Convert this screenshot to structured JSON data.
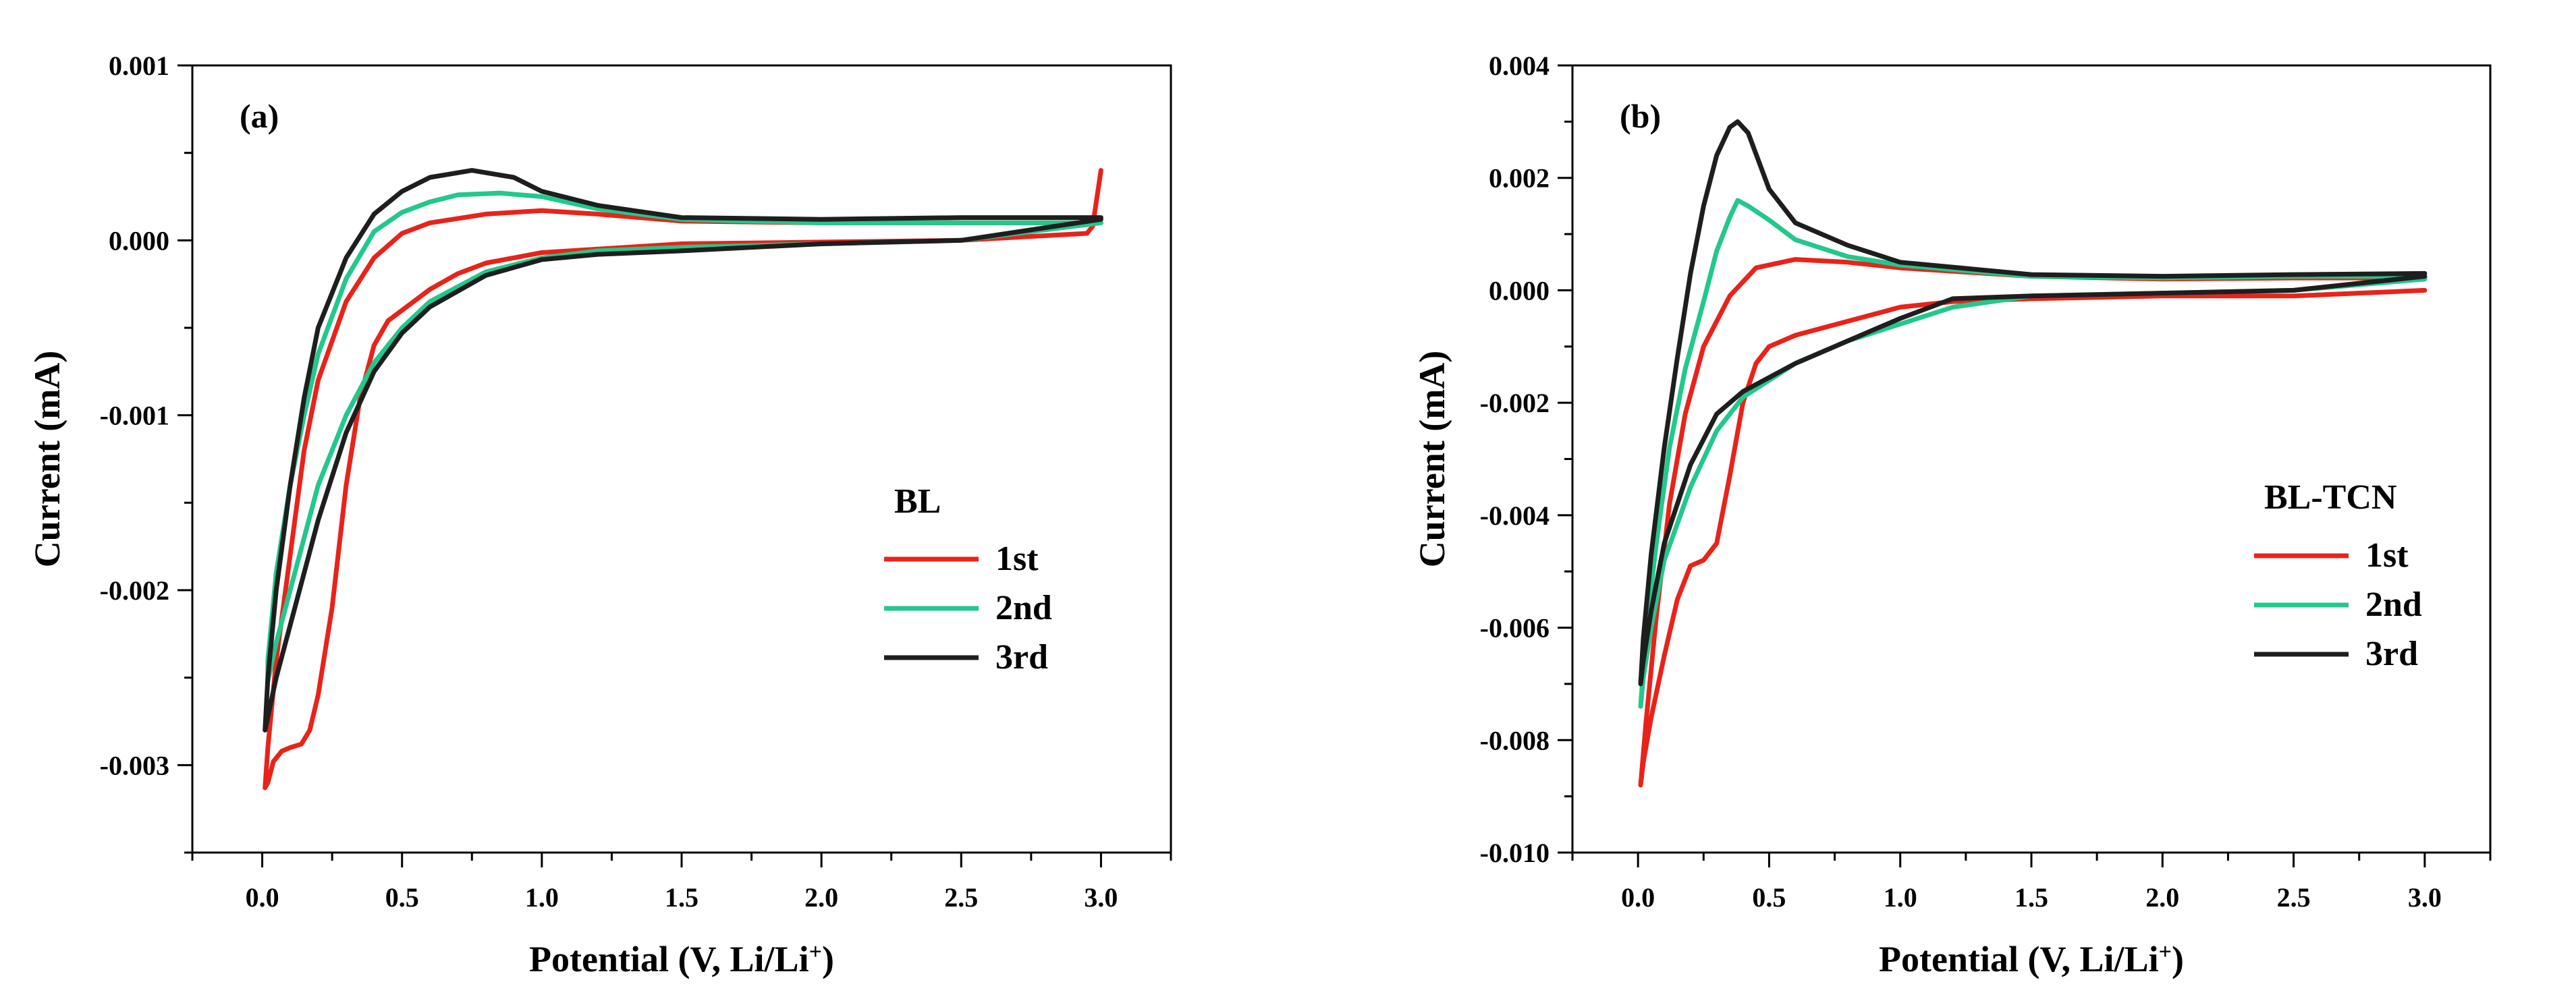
{
  "chart_data": [
    {
      "type": "line",
      "panel_label": "(a)",
      "title": "",
      "xlabel": "Potential (V, Li/Li",
      "xlabel_sup": "+",
      "xlabel_end": ")",
      "ylabel": "Current (mA)",
      "xlim": [
        -0.25,
        3.25
      ],
      "ylim": [
        -0.0035,
        0.001
      ],
      "xticks": [
        0.0,
        0.5,
        1.0,
        1.5,
        2.0,
        2.5,
        3.0
      ],
      "xtick_labels": [
        "0.0",
        "0.5",
        "1.0",
        "1.5",
        "2.0",
        "2.5",
        "3.0"
      ],
      "yticks": [
        -0.003,
        -0.002,
        -0.001,
        0.0,
        0.001
      ],
      "ytick_labels": [
        "-0.003",
        "-0.002",
        "-0.001",
        "0.000",
        "0.001"
      ],
      "grid": false,
      "legend": {
        "title": "BL",
        "position": "center-right",
        "entries": [
          "1st",
          "2nd",
          "3rd"
        ]
      },
      "series": [
        {
          "name": "1st",
          "color": "#e8231a",
          "points": [
            [
              3.0,
              0.0004
            ],
            [
              2.97,
              8e-05
            ],
            [
              2.95,
              4e-05
            ],
            [
              2.5,
              0.0
            ],
            [
              2.0,
              -1e-05
            ],
            [
              1.5,
              -2e-05
            ],
            [
              1.0,
              -7e-05
            ],
            [
              0.8,
              -0.00013
            ],
            [
              0.7,
              -0.00019
            ],
            [
              0.6,
              -0.00028
            ],
            [
              0.5,
              -0.0004
            ],
            [
              0.45,
              -0.00046
            ],
            [
              0.4,
              -0.0006
            ],
            [
              0.35,
              -0.0009
            ],
            [
              0.3,
              -0.0014
            ],
            [
              0.25,
              -0.0021
            ],
            [
              0.2,
              -0.0026
            ],
            [
              0.17,
              -0.0028
            ],
            [
              0.14,
              -0.00288
            ],
            [
              0.1,
              -0.0029
            ],
            [
              0.07,
              -0.00292
            ],
            [
              0.04,
              -0.00298
            ],
            [
              0.02,
              -0.0031
            ],
            [
              0.01,
              -0.00313
            ],
            [
              0.02,
              -0.0029
            ],
            [
              0.05,
              -0.0024
            ],
            [
              0.1,
              -0.0018
            ],
            [
              0.15,
              -0.0012
            ],
            [
              0.2,
              -0.0008
            ],
            [
              0.3,
              -0.00035
            ],
            [
              0.4,
              -0.0001
            ],
            [
              0.5,
              4e-05
            ],
            [
              0.6,
              0.0001
            ],
            [
              0.8,
              0.00015
            ],
            [
              1.0,
              0.00017
            ],
            [
              1.2,
              0.00015
            ],
            [
              1.5,
              0.00011
            ],
            [
              2.0,
              0.0001
            ],
            [
              2.5,
              0.0001
            ],
            [
              2.9,
              0.0001
            ],
            [
              3.0,
              0.0001
            ]
          ]
        },
        {
          "name": "2nd",
          "color": "#22c88c",
          "points": [
            [
              3.0,
              0.0001
            ],
            [
              2.5,
              0.0
            ],
            [
              2.0,
              -2e-05
            ],
            [
              1.5,
              -4e-05
            ],
            [
              1.2,
              -6e-05
            ],
            [
              1.0,
              -0.0001
            ],
            [
              0.8,
              -0.00018
            ],
            [
              0.6,
              -0.00035
            ],
            [
              0.5,
              -0.0005
            ],
            [
              0.4,
              -0.0007
            ],
            [
              0.3,
              -0.001
            ],
            [
              0.2,
              -0.0014
            ],
            [
              0.15,
              -0.0017
            ],
            [
              0.1,
              -0.002
            ],
            [
              0.05,
              -0.0023
            ],
            [
              0.02,
              -0.00252
            ],
            [
              0.02,
              -0.0024
            ],
            [
              0.05,
              -0.0019
            ],
            [
              0.1,
              -0.0014
            ],
            [
              0.15,
              -0.001
            ],
            [
              0.2,
              -0.00065
            ],
            [
              0.3,
              -0.00022
            ],
            [
              0.4,
              5e-05
            ],
            [
              0.5,
              0.00016
            ],
            [
              0.6,
              0.00022
            ],
            [
              0.7,
              0.00026
            ],
            [
              0.85,
              0.00027
            ],
            [
              1.0,
              0.00025
            ],
            [
              1.2,
              0.00018
            ],
            [
              1.5,
              0.00012
            ],
            [
              2.0,
              0.0001
            ],
            [
              2.5,
              0.0001
            ],
            [
              3.0,
              0.0001
            ]
          ]
        },
        {
          "name": "3rd",
          "color": "#1e1e1e",
          "points": [
            [
              3.0,
              0.00012
            ],
            [
              2.5,
              0.0
            ],
            [
              2.0,
              -2e-05
            ],
            [
              1.5,
              -6e-05
            ],
            [
              1.2,
              -8e-05
            ],
            [
              1.0,
              -0.00011
            ],
            [
              0.8,
              -0.0002
            ],
            [
              0.6,
              -0.00038
            ],
            [
              0.5,
              -0.00053
            ],
            [
              0.4,
              -0.00075
            ],
            [
              0.3,
              -0.0011
            ],
            [
              0.2,
              -0.0016
            ],
            [
              0.15,
              -0.0019
            ],
            [
              0.1,
              -0.0022
            ],
            [
              0.05,
              -0.0025
            ],
            [
              0.01,
              -0.0028
            ],
            [
              0.02,
              -0.0025
            ],
            [
              0.05,
              -0.002
            ],
            [
              0.1,
              -0.0014
            ],
            [
              0.15,
              -0.0009
            ],
            [
              0.2,
              -0.0005
            ],
            [
              0.3,
              -0.0001
            ],
            [
              0.4,
              0.00015
            ],
            [
              0.5,
              0.00028
            ],
            [
              0.6,
              0.00036
            ],
            [
              0.75,
              0.0004
            ],
            [
              0.9,
              0.00036
            ],
            [
              1.0,
              0.00028
            ],
            [
              1.2,
              0.0002
            ],
            [
              1.5,
              0.00013
            ],
            [
              2.0,
              0.00012
            ],
            [
              2.5,
              0.00013
            ],
            [
              3.0,
              0.00013
            ]
          ]
        }
      ]
    },
    {
      "type": "line",
      "panel_label": "(b)",
      "title": "",
      "xlabel": "Potential (V, Li/Li",
      "xlabel_sup": "+",
      "xlabel_end": ")",
      "ylabel": "Current (mA)",
      "xlim": [
        -0.25,
        3.25
      ],
      "ylim": [
        -0.01,
        0.004
      ],
      "xticks": [
        0.0,
        0.5,
        1.0,
        1.5,
        2.0,
        2.5,
        3.0
      ],
      "xtick_labels": [
        "0.0",
        "0.5",
        "1.0",
        "1.5",
        "2.0",
        "2.5",
        "3.0"
      ],
      "yticks": [
        -0.01,
        -0.008,
        -0.006,
        -0.004,
        -0.002,
        0.0,
        0.002,
        0.004
      ],
      "ytick_labels": [
        "-0.010",
        "-0.008",
        "-0.006",
        "-0.004",
        "-0.002",
        "0.000",
        "0.002",
        "0.004"
      ],
      "grid": false,
      "legend": {
        "title": "BL-TCN",
        "position": "center-right",
        "entries": [
          "1st",
          "2nd",
          "3rd"
        ]
      },
      "series": [
        {
          "name": "1st",
          "color": "#e8231a",
          "points": [
            [
              3.0,
              0.0
            ],
            [
              2.5,
              -0.0001
            ],
            [
              2.0,
              -0.0001
            ],
            [
              1.5,
              -0.00015
            ],
            [
              1.2,
              -0.0002
            ],
            [
              1.0,
              -0.0003
            ],
            [
              0.8,
              -0.00055
            ],
            [
              0.6,
              -0.0008
            ],
            [
              0.5,
              -0.001
            ],
            [
              0.45,
              -0.0013
            ],
            [
              0.4,
              -0.002
            ],
            [
              0.35,
              -0.0033
            ],
            [
              0.3,
              -0.0045
            ],
            [
              0.25,
              -0.0048
            ],
            [
              0.2,
              -0.0049
            ],
            [
              0.15,
              -0.0055
            ],
            [
              0.1,
              -0.0065
            ],
            [
              0.05,
              -0.0076
            ],
            [
              0.02,
              -0.0084
            ],
            [
              0.01,
              -0.0088
            ],
            [
              0.03,
              -0.0077
            ],
            [
              0.07,
              -0.0058
            ],
            [
              0.12,
              -0.0038
            ],
            [
              0.18,
              -0.0022
            ],
            [
              0.25,
              -0.001
            ],
            [
              0.35,
              -0.0001
            ],
            [
              0.45,
              0.0004
            ],
            [
              0.6,
              0.00055
            ],
            [
              0.8,
              0.0005
            ],
            [
              1.0,
              0.0004
            ],
            [
              1.5,
              0.00025
            ],
            [
              2.0,
              0.0002
            ],
            [
              2.5,
              0.00022
            ],
            [
              3.0,
              0.00022
            ]
          ]
        },
        {
          "name": "2nd",
          "color": "#22c88c",
          "points": [
            [
              3.0,
              0.0002
            ],
            [
              2.5,
              0.0
            ],
            [
              2.0,
              -5e-05
            ],
            [
              1.5,
              -0.0001
            ],
            [
              1.2,
              -0.0003
            ],
            [
              1.0,
              -0.0006
            ],
            [
              0.8,
              -0.0009
            ],
            [
              0.6,
              -0.0013
            ],
            [
              0.4,
              -0.0019
            ],
            [
              0.3,
              -0.0025
            ],
            [
              0.2,
              -0.0035
            ],
            [
              0.1,
              -0.0048
            ],
            [
              0.05,
              -0.006
            ],
            [
              0.02,
              -0.0069
            ],
            [
              0.01,
              -0.0074
            ],
            [
              0.03,
              -0.0061
            ],
            [
              0.07,
              -0.0045
            ],
            [
              0.12,
              -0.0028
            ],
            [
              0.18,
              -0.0014
            ],
            [
              0.25,
              -0.0002
            ],
            [
              0.3,
              0.0007
            ],
            [
              0.35,
              0.0013
            ],
            [
              0.38,
              0.0016
            ],
            [
              0.42,
              0.0015
            ],
            [
              0.5,
              0.00125
            ],
            [
              0.6,
              0.0009
            ],
            [
              0.8,
              0.0006
            ],
            [
              1.0,
              0.00045
            ],
            [
              1.5,
              0.00025
            ],
            [
              2.0,
              0.00022
            ],
            [
              2.5,
              0.00025
            ],
            [
              3.0,
              0.00025
            ]
          ]
        },
        {
          "name": "3rd",
          "color": "#1e1e1e",
          "points": [
            [
              3.0,
              0.00025
            ],
            [
              2.5,
              0.0
            ],
            [
              2.0,
              -5e-05
            ],
            [
              1.5,
              -0.0001
            ],
            [
              1.2,
              -0.00015
            ],
            [
              1.0,
              -0.0005
            ],
            [
              0.8,
              -0.0009
            ],
            [
              0.6,
              -0.0013
            ],
            [
              0.4,
              -0.0018
            ],
            [
              0.3,
              -0.0022
            ],
            [
              0.2,
              -0.0031
            ],
            [
              0.1,
              -0.0045
            ],
            [
              0.05,
              -0.0057
            ],
            [
              0.02,
              -0.0066
            ],
            [
              0.01,
              -0.007
            ],
            [
              0.02,
              -0.0062
            ],
            [
              0.05,
              -0.0047
            ],
            [
              0.1,
              -0.0028
            ],
            [
              0.15,
              -0.0012
            ],
            [
              0.2,
              0.0003
            ],
            [
              0.25,
              0.0015
            ],
            [
              0.3,
              0.0024
            ],
            [
              0.35,
              0.0029
            ],
            [
              0.38,
              0.003
            ],
            [
              0.42,
              0.0028
            ],
            [
              0.5,
              0.0018
            ],
            [
              0.6,
              0.0012
            ],
            [
              0.8,
              0.0008
            ],
            [
              1.0,
              0.0005
            ],
            [
              1.5,
              0.00028
            ],
            [
              2.0,
              0.00025
            ],
            [
              2.5,
              0.00028
            ],
            [
              3.0,
              0.0003
            ]
          ]
        }
      ]
    }
  ]
}
